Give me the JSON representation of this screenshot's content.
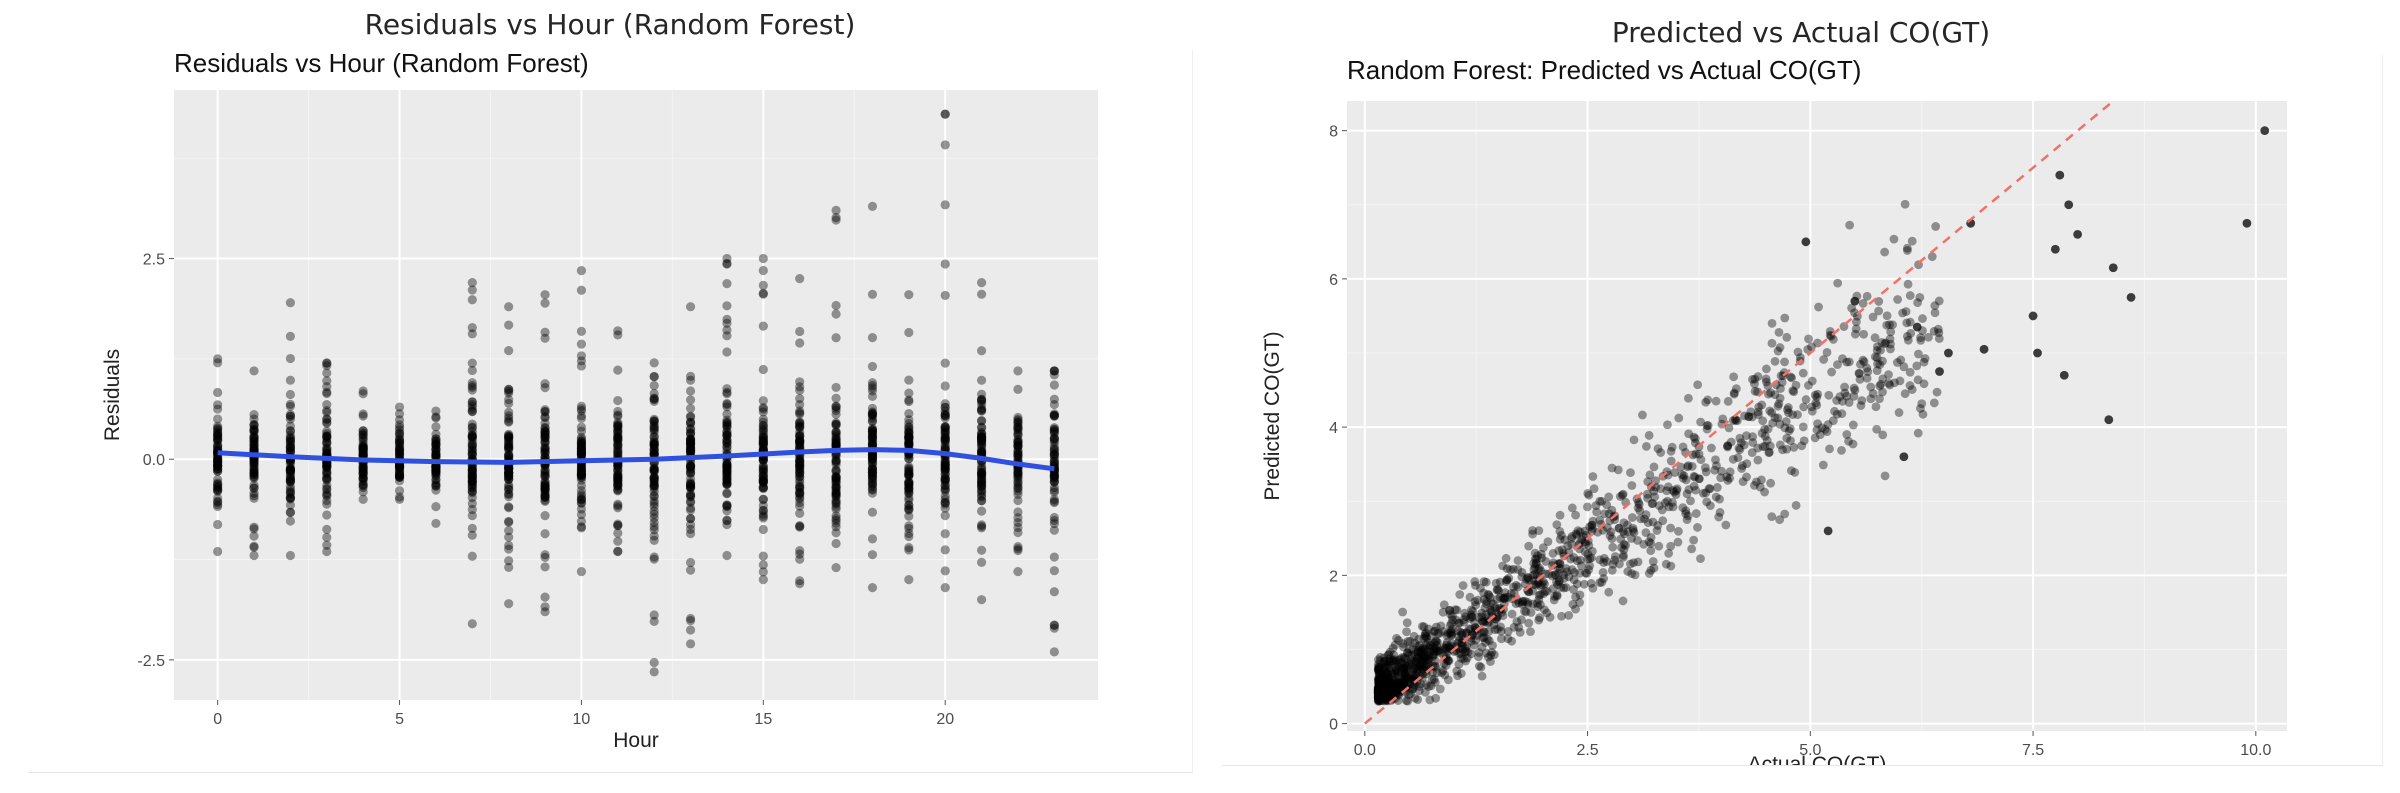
{
  "figure": {
    "left_title": "Residuals vs Hour (Random Forest)",
    "right_title": "Predicted vs Actual CO(GT)"
  },
  "chart_data": [
    {
      "type": "scatter",
      "title": "Residuals vs Hour (Random Forest)",
      "xlabel": "Hour",
      "ylabel": "Residuals",
      "xlim": [
        -1.2,
        24.2
      ],
      "ylim": [
        -3.0,
        4.6
      ],
      "x_ticks": [
        0,
        5,
        10,
        15,
        20
      ],
      "x_tick_labels": [
        "0",
        "5",
        "10",
        "15",
        "20"
      ],
      "y_ticks": [
        -2.5,
        0.0,
        2.5
      ],
      "y_tick_labels": [
        "-2.5",
        "0.0",
        "2.5"
      ],
      "background": "#ebebeb",
      "grid": true,
      "point_color": "#000000",
      "point_alpha": 0.4,
      "smooth_color": "#3050e0",
      "hour_ranges": [
        {
          "hour": 0,
          "min": -1.15,
          "max": 1.25,
          "n": 70
        },
        {
          "hour": 1,
          "min": -1.2,
          "max": 1.1,
          "n": 70
        },
        {
          "hour": 2,
          "min": -1.2,
          "max": 1.95,
          "n": 70
        },
        {
          "hour": 3,
          "min": -1.15,
          "max": 1.2,
          "n": 70
        },
        {
          "hour": 4,
          "min": -0.5,
          "max": 0.85,
          "n": 60
        },
        {
          "hour": 5,
          "min": -0.5,
          "max": 0.65,
          "n": 60
        },
        {
          "hour": 6,
          "min": -0.8,
          "max": 0.6,
          "n": 60
        },
        {
          "hour": 7,
          "min": -2.05,
          "max": 2.2,
          "n": 80
        },
        {
          "hour": 8,
          "min": -1.8,
          "max": 1.9,
          "n": 80
        },
        {
          "hour": 9,
          "min": -1.9,
          "max": 2.05,
          "n": 80
        },
        {
          "hour": 10,
          "min": -1.4,
          "max": 2.35,
          "n": 80
        },
        {
          "hour": 11,
          "min": -1.15,
          "max": 1.6,
          "n": 80
        },
        {
          "hour": 12,
          "min": -2.65,
          "max": 1.2,
          "n": 80
        },
        {
          "hour": 13,
          "min": -2.3,
          "max": 1.9,
          "n": 80
        },
        {
          "hour": 14,
          "min": -1.2,
          "max": 2.5,
          "n": 80
        },
        {
          "hour": 15,
          "min": -1.5,
          "max": 2.5,
          "n": 80
        },
        {
          "hour": 16,
          "min": -1.55,
          "max": 2.25,
          "n": 80
        },
        {
          "hour": 17,
          "min": -1.35,
          "max": 3.1,
          "n": 80
        },
        {
          "hour": 18,
          "min": -1.6,
          "max": 3.15,
          "n": 80
        },
        {
          "hour": 19,
          "min": -1.5,
          "max": 2.05,
          "n": 80
        },
        {
          "hour": 20,
          "min": -1.6,
          "max": 4.3,
          "n": 80
        },
        {
          "hour": 21,
          "min": -1.75,
          "max": 2.2,
          "n": 80
        },
        {
          "hour": 22,
          "min": -1.4,
          "max": 1.1,
          "n": 70
        },
        {
          "hour": 23,
          "min": -2.4,
          "max": 1.1,
          "n": 70
        }
      ],
      "smooth_line": {
        "x": [
          0,
          2,
          4,
          6,
          8,
          10,
          12,
          14,
          16,
          17,
          18,
          19,
          20,
          21,
          22,
          23
        ],
        "y": [
          0.08,
          0.03,
          -0.01,
          -0.03,
          -0.04,
          -0.02,
          0.0,
          0.04,
          0.09,
          0.11,
          0.12,
          0.11,
          0.07,
          0.01,
          -0.06,
          -0.12
        ]
      }
    },
    {
      "type": "scatter",
      "title": "Random Forest: Predicted vs Actual CO(GT)",
      "xlabel": "Actual CO(GT)",
      "ylabel": "Predicted CO(GT)",
      "xlim": [
        -0.2,
        10.35
      ],
      "ylim": [
        -0.1,
        8.4
      ],
      "x_ticks": [
        0.0,
        2.5,
        5.0,
        7.5,
        10.0
      ],
      "x_tick_labels": [
        "0.0",
        "2.5",
        "5.0",
        "7.5",
        "10.0"
      ],
      "y_ticks": [
        0,
        2,
        4,
        6,
        8
      ],
      "y_tick_labels": [
        "0",
        "2",
        "4",
        "6",
        "8"
      ],
      "background": "#ebebeb",
      "grid": true,
      "point_color": "#000000",
      "point_alpha": 0.4,
      "n_points": 1400,
      "reference_line": {
        "type": "y = x",
        "color": "#f0706a",
        "dashed": true
      },
      "outlier_points": [
        {
          "x": 10.1,
          "y": 8.0
        },
        {
          "x": 9.9,
          "y": 6.75
        },
        {
          "x": 8.6,
          "y": 5.75
        },
        {
          "x": 8.4,
          "y": 6.15
        },
        {
          "x": 8.35,
          "y": 4.1
        },
        {
          "x": 8.0,
          "y": 6.6
        },
        {
          "x": 7.9,
          "y": 7.0
        },
        {
          "x": 7.8,
          "y": 7.4
        },
        {
          "x": 7.85,
          "y": 4.7
        },
        {
          "x": 7.75,
          "y": 6.4
        },
        {
          "x": 7.5,
          "y": 5.5
        },
        {
          "x": 7.55,
          "y": 5.0
        },
        {
          "x": 6.8,
          "y": 6.75
        },
        {
          "x": 6.95,
          "y": 5.05
        },
        {
          "x": 6.55,
          "y": 5.0
        },
        {
          "x": 6.45,
          "y": 4.75
        },
        {
          "x": 4.95,
          "y": 6.5
        },
        {
          "x": 5.2,
          "y": 2.6
        },
        {
          "x": 5.5,
          "y": 5.7
        },
        {
          "x": 6.2,
          "y": 5.35
        },
        {
          "x": 6.05,
          "y": 3.6
        }
      ]
    }
  ]
}
